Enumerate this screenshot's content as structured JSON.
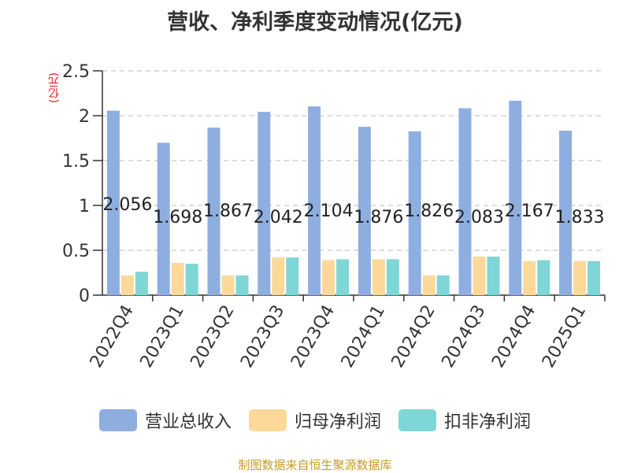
{
  "title": "营收、净利季度变动情况(亿元)",
  "unit": "(亿元)",
  "source": "制图数据来自恒生聚源数据库",
  "chart_data": {
    "type": "bar",
    "categories": [
      "2022Q4",
      "2023Q1",
      "2023Q2",
      "2023Q3",
      "2023Q4",
      "2024Q1",
      "2024Q2",
      "2024Q3",
      "2024Q4",
      "2025Q1"
    ],
    "series": [
      {
        "name": "营业总收入",
        "color": "#8eaee0",
        "values": [
          2.056,
          1.698,
          1.867,
          2.042,
          2.104,
          1.876,
          1.826,
          2.083,
          2.167,
          1.833
        ],
        "labels": [
          "2.056",
          "1.698",
          "1.867",
          "2.042",
          "2.104",
          "1.876",
          "1.826",
          "2.083",
          "2.167",
          "1.833"
        ]
      },
      {
        "name": "归母净利润",
        "color": "#fcd99a",
        "values": [
          0.22,
          0.36,
          0.22,
          0.42,
          0.39,
          0.4,
          0.22,
          0.43,
          0.38,
          0.38
        ]
      },
      {
        "name": "扣非净利润",
        "color": "#7fd6d6",
        "values": [
          0.26,
          0.35,
          0.22,
          0.42,
          0.4,
          0.4,
          0.22,
          0.43,
          0.39,
          0.38
        ]
      }
    ],
    "yticks": [
      "0",
      "0.5",
      "1",
      "1.5",
      "2",
      "2.5"
    ],
    "ylim": [
      0,
      2.5
    ],
    "grid": true,
    "legend_position": "bottom"
  }
}
